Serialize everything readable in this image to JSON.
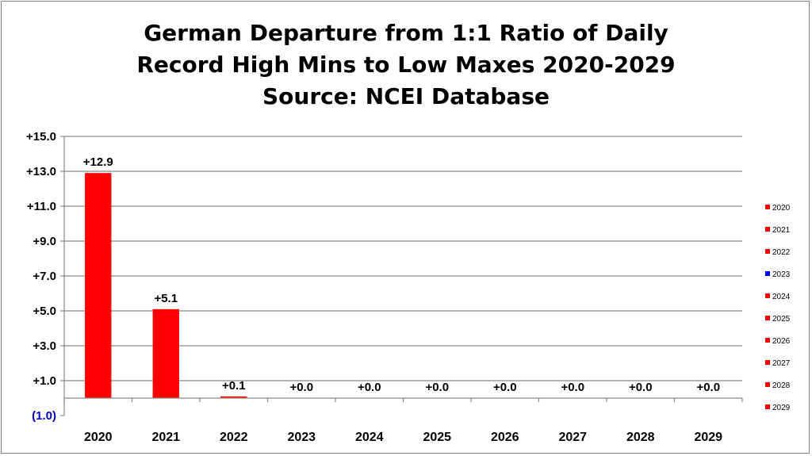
{
  "chart_data": {
    "type": "bar",
    "title_lines": [
      "German Departure from 1:1 Ratio of Daily",
      "Record High Mins to Low Maxes 2020-2029",
      "Source: NCEI Database"
    ],
    "categories": [
      "2020",
      "2021",
      "2022",
      "2023",
      "2024",
      "2025",
      "2026",
      "2027",
      "2028",
      "2029"
    ],
    "values": [
      12.9,
      5.1,
      0.1,
      0.0,
      0.0,
      0.0,
      0.0,
      0.0,
      0.0,
      0.0
    ],
    "data_labels": [
      "+12.9",
      "+5.1",
      "+0.1",
      "+0.0",
      "+0.0",
      "+0.0",
      "+0.0",
      "+0.0",
      "+0.0",
      "+0.0"
    ],
    "ylim": [
      -1.0,
      15.0
    ],
    "y_ticks": [
      15.0,
      13.0,
      11.0,
      9.0,
      7.0,
      5.0,
      3.0,
      1.0,
      -1.0
    ],
    "y_tick_labels": [
      "+15.0",
      "+13.0",
      "+11.0",
      "+9.0",
      "+7.0",
      "+5.0",
      "+3.0",
      "+1.0",
      "(1.0)"
    ],
    "grid": true,
    "legend_position": "right",
    "legend": [
      {
        "label": "2020",
        "color": "#ff0000"
      },
      {
        "label": "2021",
        "color": "#ff0000"
      },
      {
        "label": "2022",
        "color": "#ff0000"
      },
      {
        "label": "2023",
        "color": "#0000ff"
      },
      {
        "label": "2024",
        "color": "#ff0000"
      },
      {
        "label": "2025",
        "color": "#ff0000"
      },
      {
        "label": "2026",
        "color": "#ff0000"
      },
      {
        "label": "2027",
        "color": "#ff0000"
      },
      {
        "label": "2028",
        "color": "#ff0000"
      },
      {
        "label": "2029",
        "color": "#ff0000"
      }
    ],
    "bar_color": "#ff0000",
    "negative_tick_color": "#0000cc",
    "grid_color": "#898989"
  }
}
